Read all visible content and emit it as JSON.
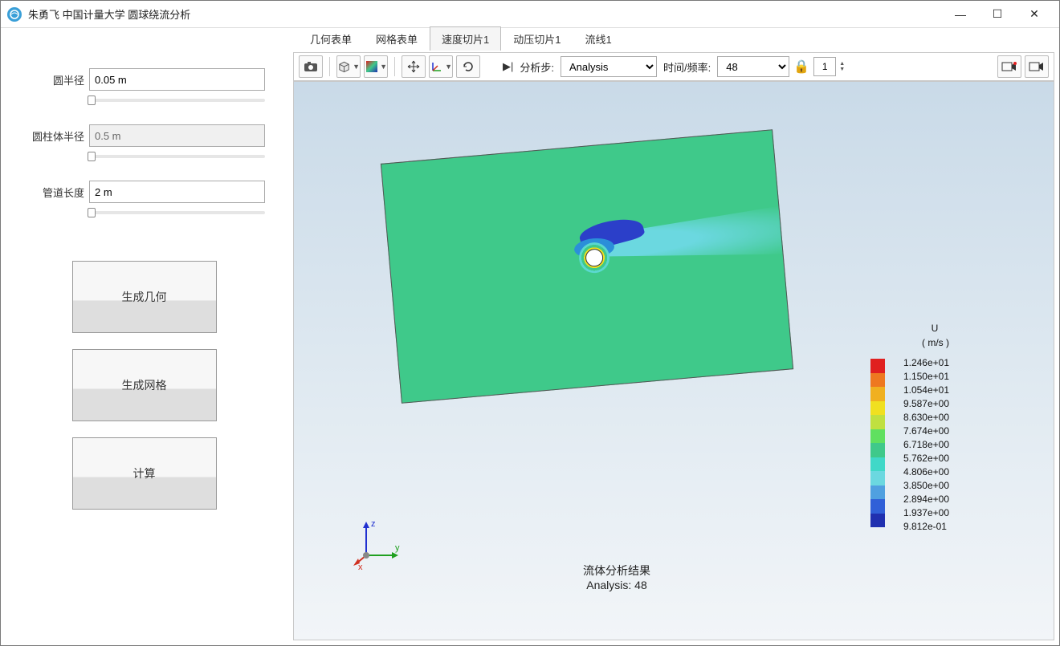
{
  "window": {
    "title": "朱勇飞 中国计量大学 圆球绕流分析"
  },
  "params": {
    "radius_label": "圆半径",
    "radius_value": "0.05 m",
    "cyl_radius_label": "圆柱体半径",
    "cyl_radius_value": "0.5 m",
    "pipe_len_label": "管道长度",
    "pipe_len_value": "2 m"
  },
  "buttons": {
    "gen_geom": "生成几何",
    "gen_mesh": "生成网格",
    "compute": "计算"
  },
  "tabs": {
    "geom": "几何表单",
    "mesh": "网格表单",
    "vel_slice": "速度切片1",
    "press_slice": "动压切片1",
    "streamline": "流线1"
  },
  "toolbar": {
    "step_label": "分析步:",
    "step_value": "Analysis",
    "freq_label": "时间/频率:",
    "freq_value": "48",
    "spin_value": "1"
  },
  "viewport": {
    "legend_var": "U",
    "legend_unit": "( m/s )",
    "result_title": "流体分析结果",
    "result_step": "Analysis: 48",
    "axis_x": "x",
    "axis_y": "y",
    "axis_z": "z",
    "colors": [
      "#e02020",
      "#ee7820",
      "#f0b020",
      "#f0e020",
      "#c0e040",
      "#60e060",
      "#3fc98a",
      "#40d8c8",
      "#6bd8e0",
      "#50a0e0",
      "#3060d8",
      "#2030b0"
    ],
    "labels": [
      "1.246e+01",
      "1.150e+01",
      "1.054e+01",
      "9.587e+00",
      "8.630e+00",
      "7.674e+00",
      "6.718e+00",
      "5.762e+00",
      "4.806e+00",
      "3.850e+00",
      "2.894e+00",
      "1.937e+00",
      "9.812e-01"
    ]
  }
}
